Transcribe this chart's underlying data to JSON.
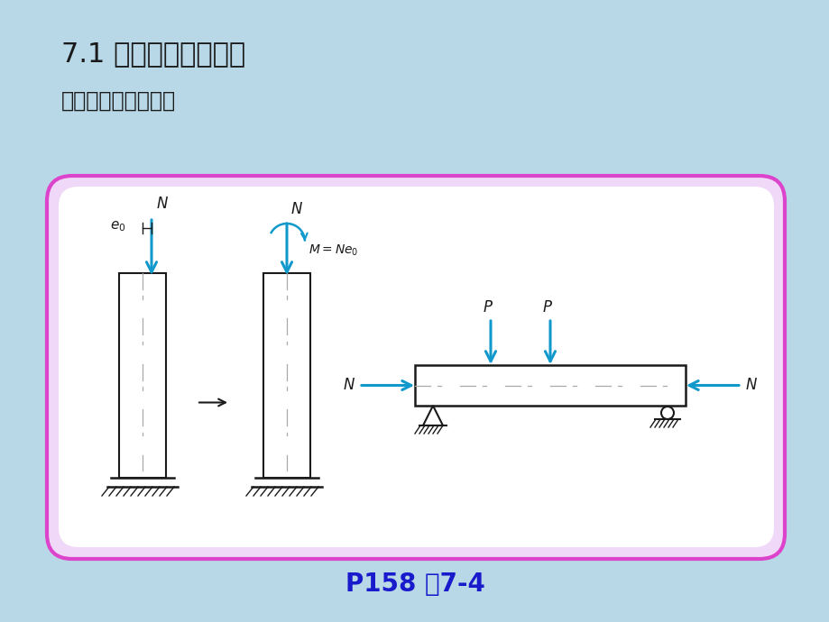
{
  "bg_color": "#b8d8e8",
  "title1": "7.1 偏心受力构件概述",
  "title2": "偏心受压、偏心受拉",
  "footer": "P158 图7-4",
  "footer_color": "#1a1acd",
  "box_bg": "#f0d8f8",
  "box_border": "#dd44cc",
  "arrow_color": "#1199cc",
  "black": "#1a1a1a",
  "white": "#ffffff",
  "gray_line": "#888888"
}
